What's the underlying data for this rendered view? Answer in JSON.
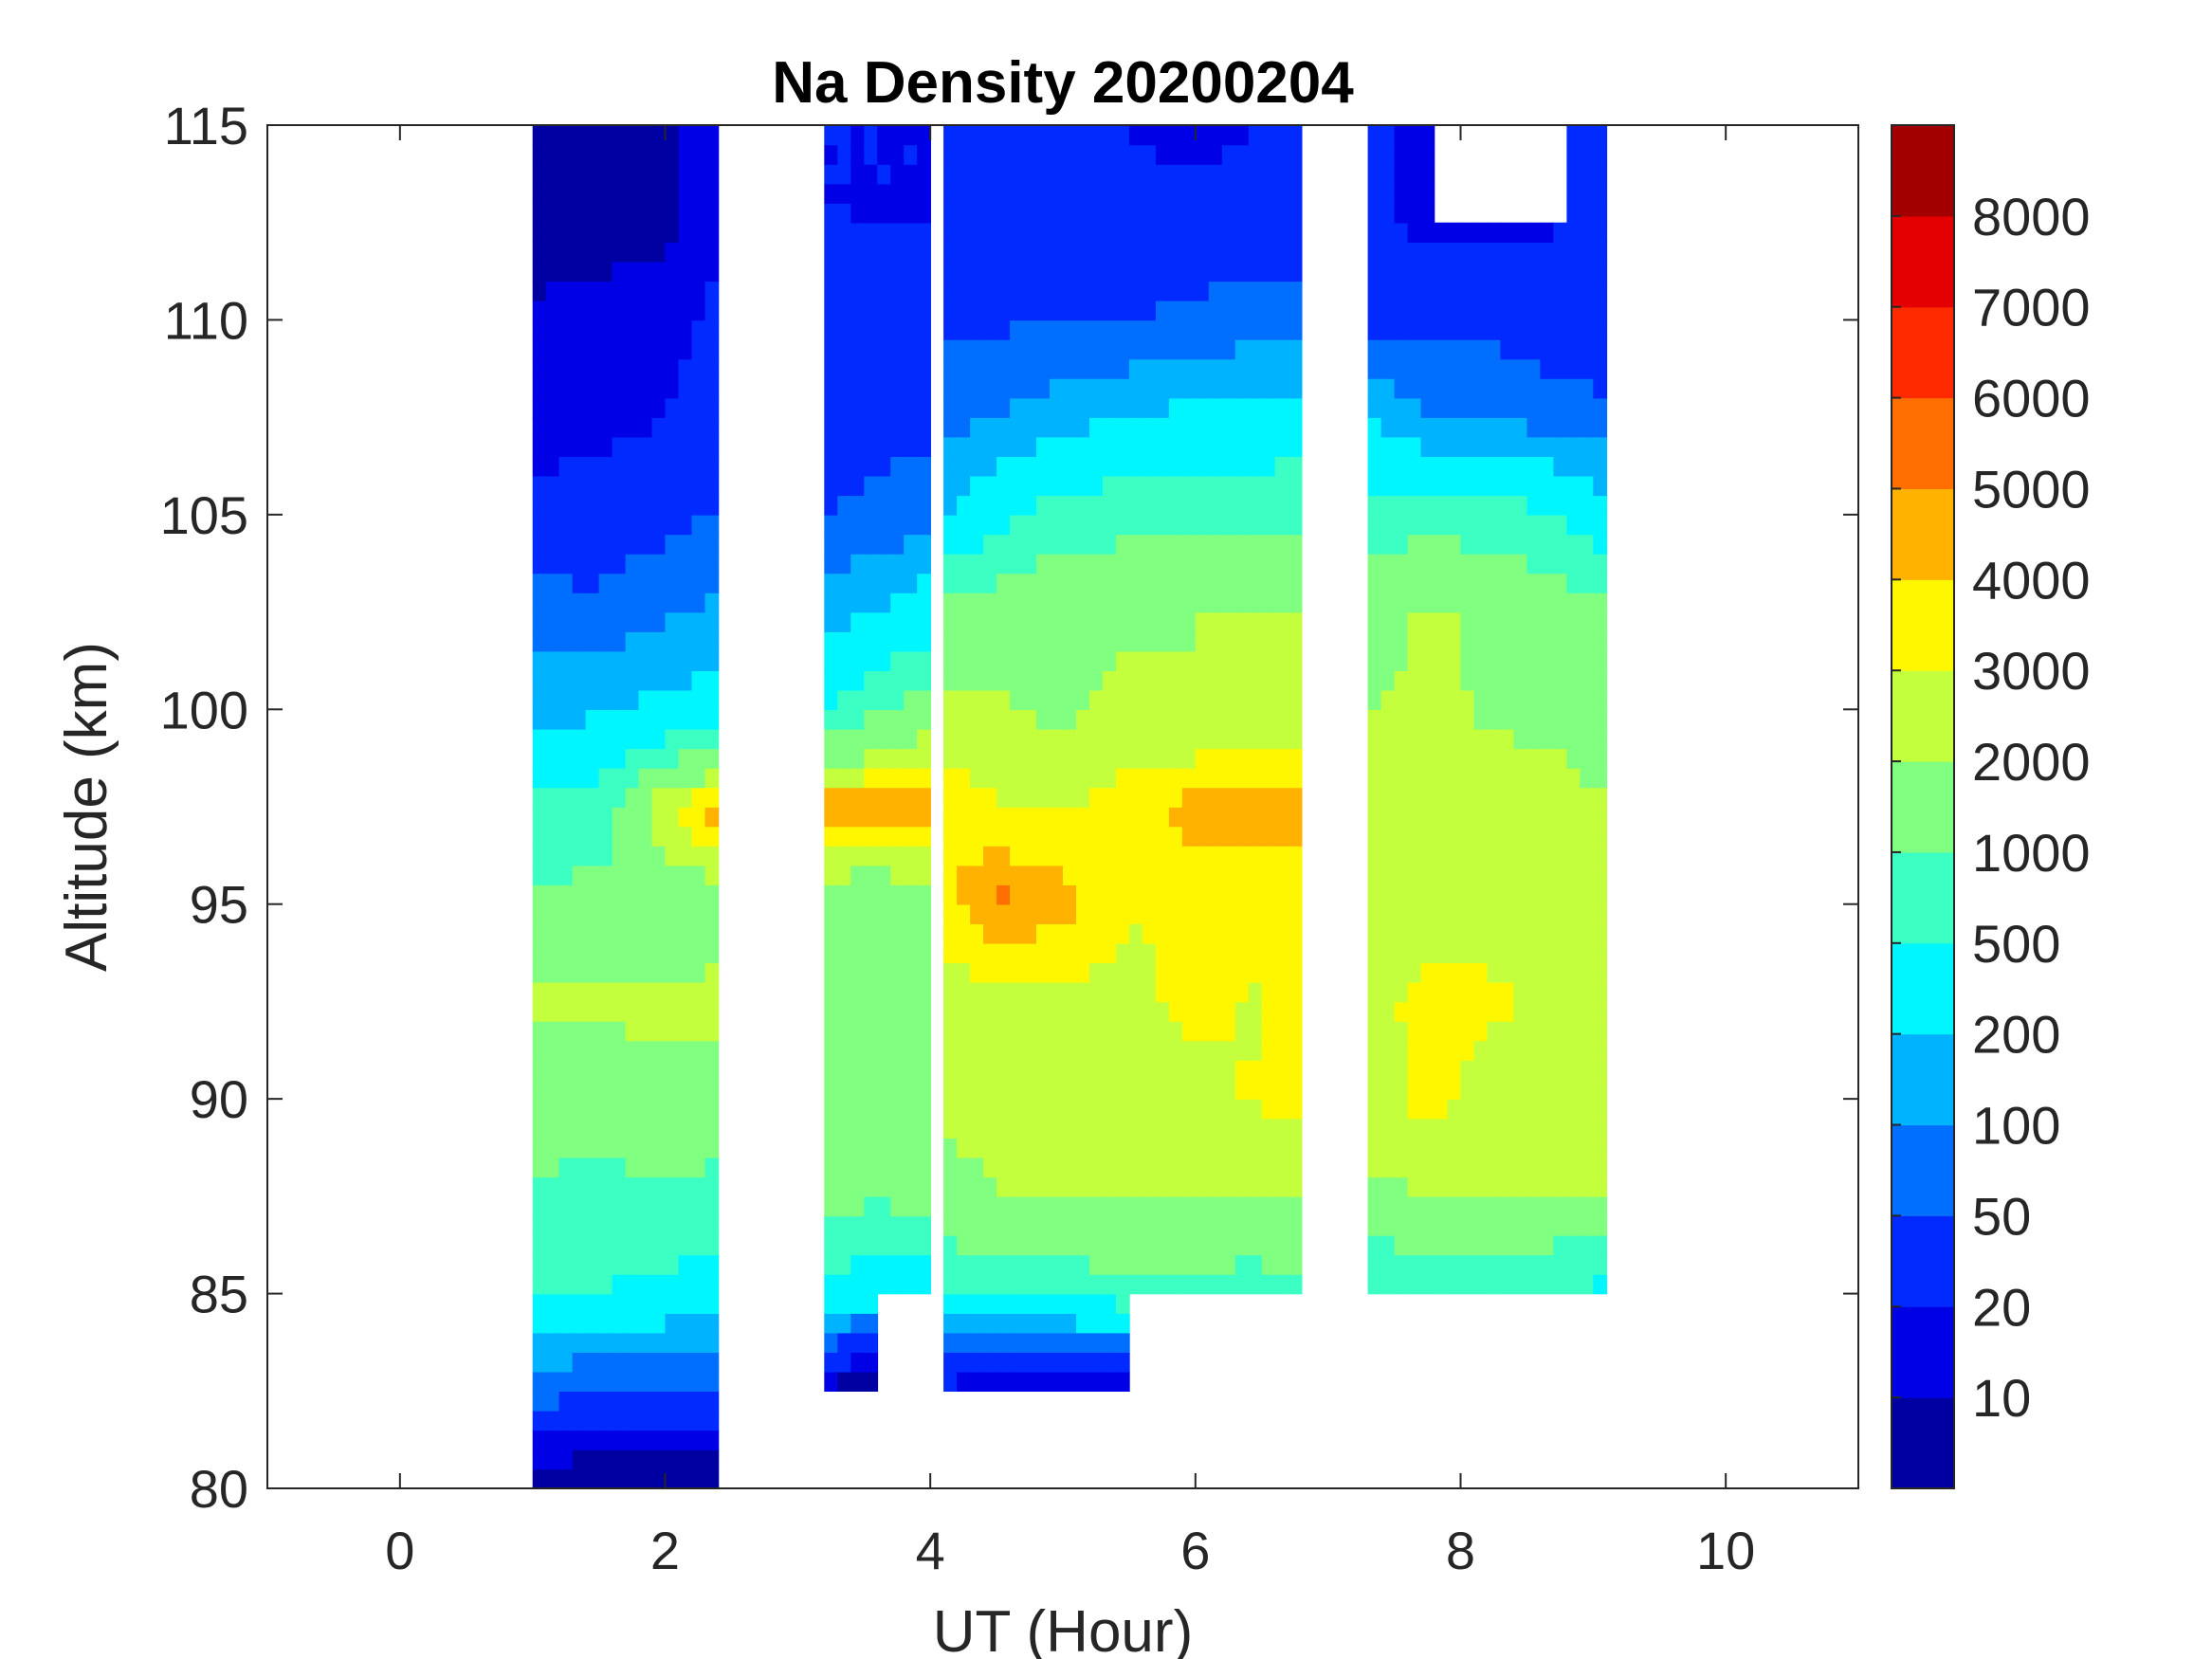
{
  "chart_data": {
    "type": "heatmap",
    "subtype": "filled-contour",
    "title": "Na Density 20200204",
    "xlabel": "UT (Hour)",
    "ylabel": "Altitude (km)",
    "xlim": [
      -1,
      11
    ],
    "ylim": [
      80,
      115
    ],
    "xticks": [
      "0",
      "2",
      "4",
      "6",
      "8",
      "10"
    ],
    "xtick_values": [
      0,
      2,
      4,
      6,
      8,
      10
    ],
    "yticks": [
      "80",
      "85",
      "90",
      "95",
      "100",
      "105",
      "110",
      "115"
    ],
    "ytick_values": [
      80,
      85,
      90,
      95,
      100,
      105,
      110,
      115
    ],
    "colormap": "jet",
    "colorbar": {
      "levels": [
        0,
        10,
        20,
        50,
        100,
        200,
        500,
        1000,
        2000,
        3000,
        4000,
        5000,
        6000,
        7000,
        8000,
        9000
      ],
      "labels": [
        "10",
        "20",
        "50",
        "100",
        "200",
        "500",
        "1000",
        "2000",
        "3000",
        "4000",
        "5000",
        "6000",
        "7000",
        "8000"
      ]
    },
    "altitudes": [
      80,
      82.5,
      85,
      87.5,
      90,
      92.5,
      95,
      97.5,
      100,
      102.5,
      105,
      107.5,
      110,
      112.5,
      115
    ],
    "segments": [
      {
        "hours": [
          1.0,
          1.5,
          2.0,
          2.4
        ],
        "values": [
          [
            5,
            5,
            5,
            5
          ],
          [
            80,
            40,
            40,
            50
          ],
          [
            500,
            500,
            400,
            350
          ],
          [
            900,
            800,
            900,
            800
          ],
          [
            1500,
            1400,
            1700,
            1500
          ],
          [
            2200,
            2300,
            2200,
            2300
          ],
          [
            1200,
            1200,
            1300,
            1500
          ],
          [
            600,
            700,
            3000,
            5500
          ],
          [
            150,
            180,
            250,
            300
          ],
          [
            70,
            60,
            90,
            120
          ],
          [
            25,
            30,
            40,
            50
          ],
          [
            15,
            15,
            20,
            30
          ],
          [
            12,
            12,
            15,
            25
          ],
          [
            6,
            8,
            8,
            15
          ],
          [
            5,
            5,
            8,
            15
          ]
        ]
      },
      {
        "hours": [
          3.2,
          3.6,
          3.95
        ],
        "values": [
          [
            5,
            null,
            null
          ],
          [
            8,
            5,
            null
          ],
          [
            400,
            300,
            300
          ],
          [
            1200,
            1100,
            1300
          ],
          [
            1500,
            1500,
            1600
          ],
          [
            1500,
            1400,
            1700
          ],
          [
            1500,
            1200,
            1500
          ],
          [
            5000,
            5500,
            5000
          ],
          [
            500,
            900,
            1500
          ],
          [
            150,
            200,
            300
          ],
          [
            50,
            60,
            80
          ],
          [
            35,
            35,
            40
          ],
          [
            25,
            25,
            25
          ],
          [
            20,
            20,
            20
          ],
          [
            20,
            20,
            20
          ]
        ]
      },
      {
        "hours": [
          4.1,
          4.5,
          5.0,
          5.5,
          6.0,
          6.5,
          6.8
        ],
        "values": [
          [
            null,
            null,
            null,
            null,
            null,
            null,
            null
          ],
          [
            15,
            10,
            10,
            10,
            null,
            5,
            null
          ],
          [
            600,
            700,
            700,
            800,
            800,
            700,
            900
          ],
          [
            1500,
            2000,
            2000,
            2100,
            2000,
            2100,
            2200
          ],
          [
            2400,
            2500,
            2600,
            2700,
            2800,
            3100,
            3300
          ],
          [
            2500,
            2500,
            2600,
            2800,
            3200,
            2900,
            3500
          ],
          [
            3500,
            5500,
            4500,
            3000,
            3300,
            3500,
            3500
          ],
          [
            4200,
            3000,
            3000,
            3500,
            4500,
            4500,
            4500
          ],
          [
            2200,
            2100,
            1800,
            2300,
            2000,
            2300,
            2500
          ],
          [
            1200,
            1500,
            1800,
            1800,
            2000,
            2000,
            2200
          ],
          [
            200,
            400,
            700,
            800,
            800,
            800,
            900
          ],
          [
            80,
            100,
            150,
            200,
            250,
            300,
            300
          ],
          [
            45,
            45,
            50,
            50,
            60,
            70,
            70
          ],
          [
            30,
            30,
            30,
            25,
            30,
            30,
            35
          ],
          [
            20,
            20,
            25,
            20,
            15,
            20,
            25
          ]
        ]
      },
      {
        "hours": [
          7.3,
          7.75,
          8.25,
          8.75,
          9.1
        ],
        "values": [
          [
            null,
            null,
            null,
            null,
            null
          ],
          [
            null,
            null,
            null,
            null,
            null
          ],
          [
            500,
            600,
            600,
            500,
            400
          ],
          [
            1800,
            2000,
            2000,
            2000,
            2100
          ],
          [
            2400,
            3400,
            2500,
            2500,
            2500
          ],
          [
            2500,
            3500,
            3200,
            2700,
            2500
          ],
          [
            2300,
            2500,
            2500,
            2600,
            2400
          ],
          [
            2200,
            2400,
            2400,
            2300,
            2200
          ],
          [
            2000,
            2200,
            1900,
            1800,
            1000
          ],
          [
            1500,
            2200,
            1800,
            1500,
            1200
          ],
          [
            700,
            800,
            700,
            500,
            300
          ],
          [
            200,
            100,
            100,
            70,
            60
          ],
          [
            40,
            40,
            40,
            30,
            30
          ],
          [
            30,
            15,
            15,
            20,
            25
          ],
          [
            30,
            10,
            null,
            20,
            30
          ]
        ]
      }
    ]
  }
}
